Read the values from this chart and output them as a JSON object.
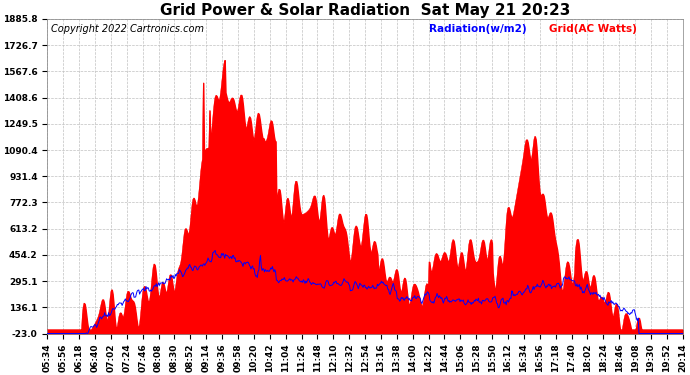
{
  "title": "Grid Power & Solar Radiation  Sat May 21 20:23",
  "copyright": "Copyright 2022 Cartronics.com",
  "legend_radiation": "Radiation(w/m2)",
  "legend_grid": "Grid(AC Watts)",
  "yticks": [
    1885.8,
    1726.7,
    1567.6,
    1408.6,
    1249.5,
    1090.4,
    931.4,
    772.3,
    613.2,
    454.2,
    295.1,
    136.1,
    -23.0
  ],
  "ymin": -23.0,
  "ymax": 1885.8,
  "grid_color": "#c0c0c0",
  "radiation_color": "#ff0000",
  "blue_line_color": "#0000ff",
  "background_color": "#ffffff",
  "title_fontsize": 11,
  "tick_fontsize": 6.5,
  "copyright_fontsize": 7
}
